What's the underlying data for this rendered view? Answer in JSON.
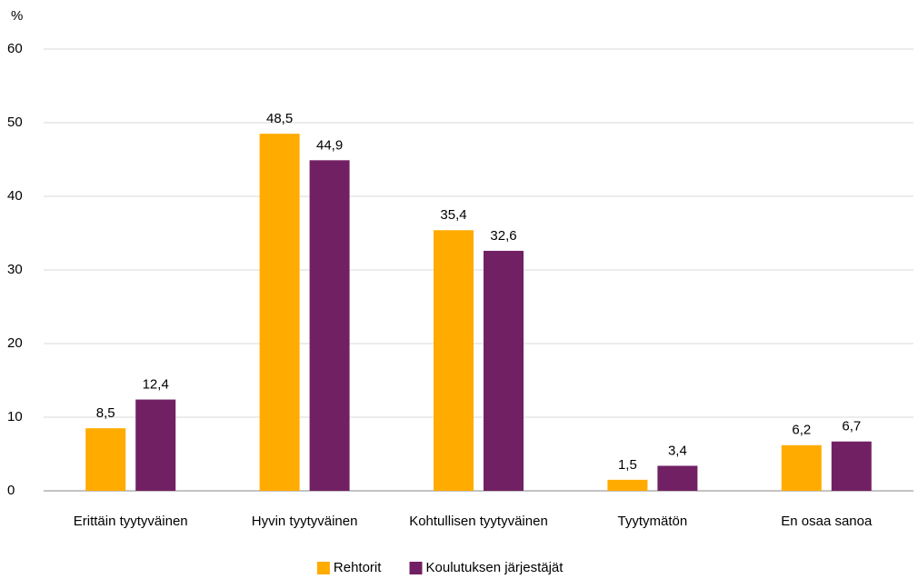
{
  "chart_data": {
    "type": "bar",
    "y_label": "%",
    "categories": [
      "Erittäin tyytyväinen",
      "Hyvin tyytyväinen",
      "Kohtullisen tyytyväinen",
      "Tyytymätön",
      "En osaa sanoa"
    ],
    "series": [
      {
        "name": "Rehtorit",
        "color": "#ffab00",
        "values": [
          8.5,
          48.5,
          35.4,
          1.5,
          6.2
        ],
        "value_labels": [
          "8,5",
          "48,5",
          "35,4",
          "1,5",
          "6,2"
        ]
      },
      {
        "name": "Koulutuksen järjestäjät",
        "color": "#722064",
        "values": [
          12.4,
          44.9,
          32.6,
          3.4,
          6.7
        ],
        "value_labels": [
          "12,4",
          "44,9",
          "32,6",
          "3,4",
          "6,7"
        ]
      }
    ],
    "ylim": [
      0,
      60
    ],
    "yticks": [
      0,
      10,
      20,
      30,
      40,
      50,
      60
    ],
    "grid": true,
    "legend": "bottom"
  }
}
